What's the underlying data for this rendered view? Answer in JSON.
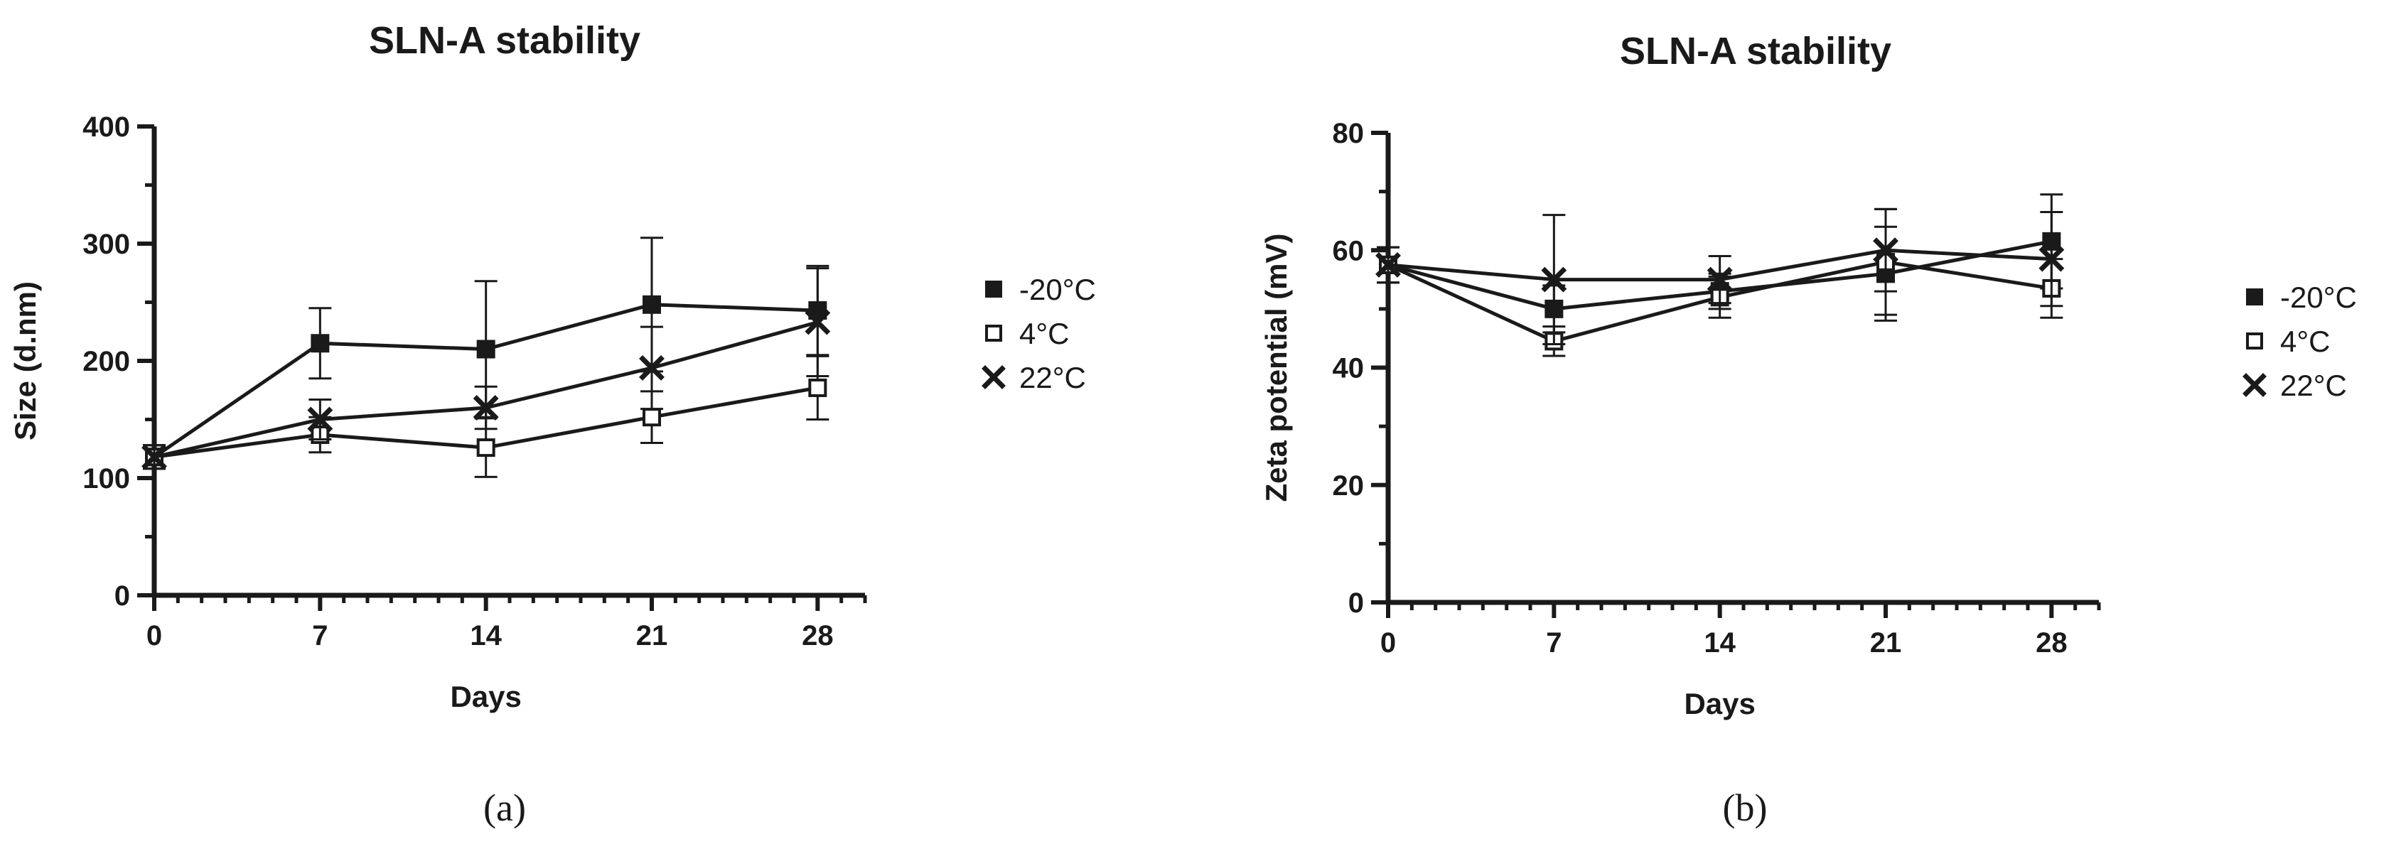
{
  "chart_data": [
    {
      "type": "line",
      "panel_label": "(a)",
      "title": "SLN-A stability",
      "xlabel": "Days",
      "ylabel": "Size (d.nm)",
      "x": [
        0,
        7,
        14,
        21,
        28
      ],
      "x_ticks": [
        0,
        7,
        14,
        21,
        28
      ],
      "xlim": [
        0,
        30
      ],
      "ylim": [
        0,
        400
      ],
      "y_ticks": [
        0,
        100,
        200,
        300,
        400
      ],
      "grid": false,
      "legend_position": "right",
      "error_bars": true,
      "series": [
        {
          "name": "-20°C",
          "marker": "filled-square",
          "values": [
            118,
            215,
            210,
            248,
            243
          ],
          "errors": [
            10,
            30,
            58,
            57,
            38
          ]
        },
        {
          "name": "4°C",
          "marker": "open-square",
          "values": [
            118,
            137,
            126,
            152,
            177
          ],
          "errors": [
            10,
            15,
            25,
            22,
            27
          ]
        },
        {
          "name": "22°C",
          "marker": "cross",
          "values": [
            118,
            150,
            160,
            194,
            233
          ],
          "errors": [
            10,
            17,
            18,
            35,
            46
          ]
        }
      ]
    },
    {
      "type": "line",
      "panel_label": "(b)",
      "title": "SLN-A stability",
      "xlabel": "Days",
      "ylabel": "Zeta potential (mV)",
      "x": [
        0,
        7,
        14,
        21,
        28
      ],
      "x_ticks": [
        0,
        7,
        14,
        21,
        28
      ],
      "xlim": [
        0,
        30
      ],
      "ylim": [
        0,
        80
      ],
      "y_ticks": [
        0,
        20,
        40,
        60,
        80
      ],
      "grid": false,
      "legend_position": "right",
      "error_bars": true,
      "series": [
        {
          "name": "-20°C",
          "marker": "filled-square",
          "values": [
            57.5,
            50,
            53,
            56,
            61.5
          ],
          "errors": [
            3,
            4,
            3,
            8,
            8
          ]
        },
        {
          "name": "4°C",
          "marker": "open-square",
          "values": [
            57.5,
            44.5,
            52,
            58,
            53.5
          ],
          "errors": [
            3,
            2.5,
            3.5,
            9,
            5
          ]
        },
        {
          "name": "22°C",
          "marker": "cross",
          "values": [
            57.5,
            55,
            55,
            60,
            58.5
          ],
          "errors": [
            3,
            11,
            4,
            7,
            8
          ]
        }
      ]
    }
  ]
}
